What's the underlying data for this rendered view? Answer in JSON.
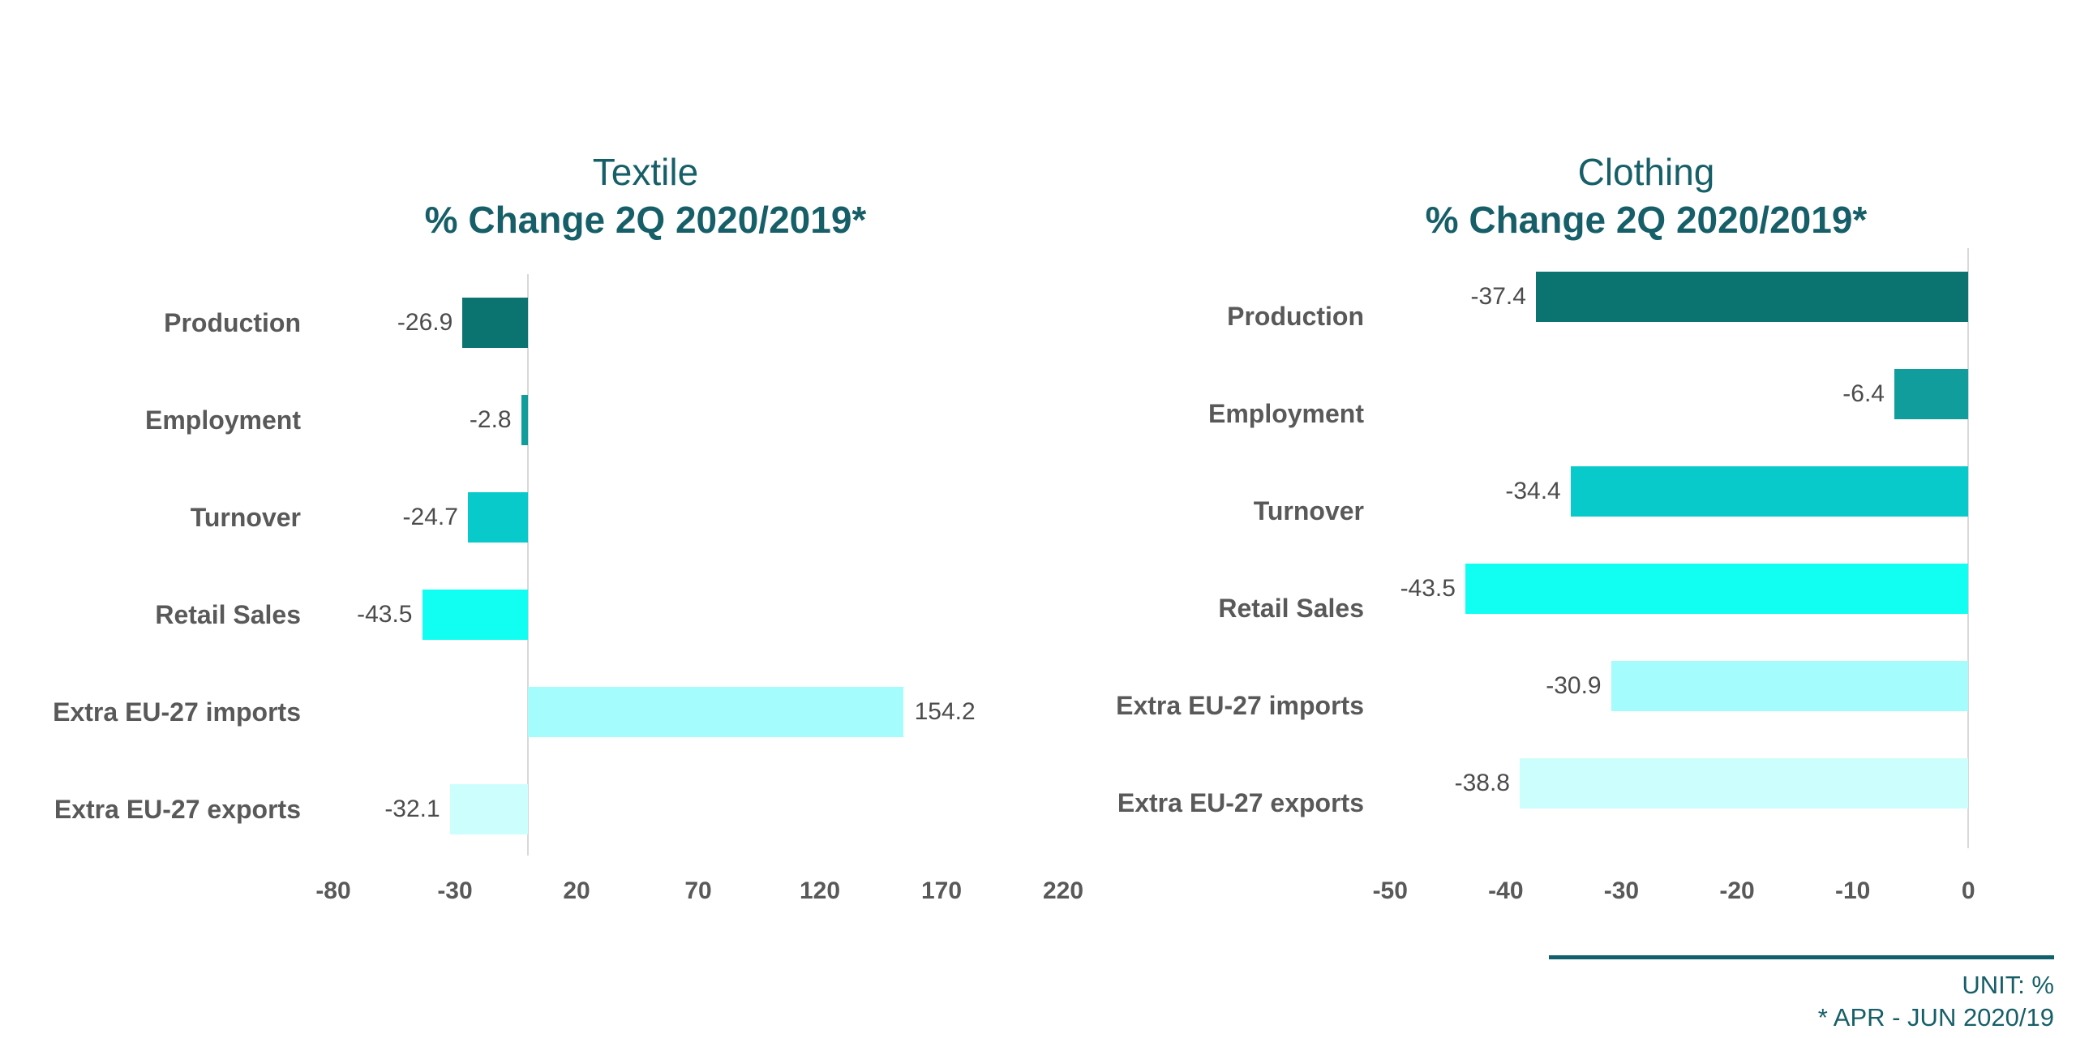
{
  "theme": {
    "background": "#FFFFFF",
    "title_color": "#175F68",
    "category_label_color": "#595959",
    "value_label_color": "#4C4C4C",
    "tick_label_color": "#595959",
    "axis_line_color": "#D9D9D9",
    "footer_text_color": "#175F68",
    "footer_line_color": "#10616E"
  },
  "chart_data": [
    {
      "type": "bar",
      "orientation": "horizontal",
      "title": "Textile",
      "subtitle": "% Change 2Q 2020/2019*",
      "categories": [
        "Production",
        "Employment",
        "Turnover",
        "Retail Sales",
        "Extra EU-27 imports",
        "Extra EU-27 exports"
      ],
      "values": [
        -26.9,
        -2.8,
        -24.7,
        -43.5,
        154.2,
        -32.1
      ],
      "bar_colors": [
        "#0B7370",
        "#109D9B",
        "#08CACA",
        "#11FFF2",
        "#A5FCFC",
        "#CDFEFE"
      ],
      "xticks": [
        -80,
        -30,
        20,
        70,
        120,
        170,
        220
      ],
      "xlim": [
        -100,
        233
      ],
      "grid": false,
      "legend": "none",
      "unit": "%"
    },
    {
      "type": "bar",
      "orientation": "horizontal",
      "title": "Clothing",
      "subtitle": "% Change 2Q 2020/2019*",
      "categories": [
        "Production",
        "Employment",
        "Turnover",
        "Retail Sales",
        "Extra EU-27 imports",
        "Extra EU-27 exports"
      ],
      "values": [
        -37.4,
        -6.4,
        -34.4,
        -43.5,
        -30.9,
        -38.8
      ],
      "bar_colors": [
        "#0B7370",
        "#109D9B",
        "#08CACA",
        "#11FFF2",
        "#A5FCFC",
        "#CDFEFE"
      ],
      "xticks": [
        -50,
        -40,
        -30,
        -20,
        -10,
        0
      ],
      "xlim": [
        -51,
        3.7
      ],
      "grid": false,
      "legend": "none",
      "unit": "%"
    }
  ],
  "footer": {
    "unit_label": "UNIT: %",
    "note_label": "* APR - JUN 2020/19"
  }
}
